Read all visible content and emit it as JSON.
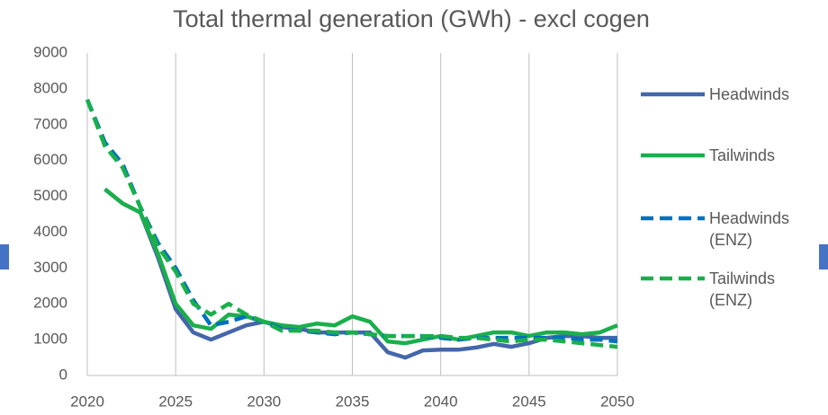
{
  "chart_data": {
    "type": "line",
    "title": "Total thermal generation (GWh) - excl cogen",
    "x": [
      2020,
      2021,
      2022,
      2023,
      2024,
      2025,
      2026,
      2027,
      2028,
      2029,
      2030,
      2031,
      2032,
      2033,
      2034,
      2035,
      2036,
      2037,
      2038,
      2039,
      2040,
      2041,
      2042,
      2043,
      2044,
      2045,
      2046,
      2047,
      2048,
      2049,
      2050
    ],
    "xlim": [
      2020,
      2050
    ],
    "xticks": [
      2020,
      2025,
      2030,
      2035,
      2040,
      2045,
      2050
    ],
    "ylim": [
      0,
      9000
    ],
    "yticks": [
      0,
      1000,
      2000,
      3000,
      4000,
      5000,
      6000,
      7000,
      8000,
      9000
    ],
    "xgrid": true,
    "legend": "right",
    "series": [
      {
        "name": "Headwinds",
        "color": "#4466aa",
        "style": "solid",
        "values": [
          null,
          5200,
          4800,
          4550,
          3300,
          1850,
          1200,
          1000,
          1200,
          1400,
          1500,
          1350,
          1300,
          1200,
          1200,
          1200,
          1200,
          650,
          500,
          700,
          720,
          720,
          780,
          880,
          800,
          900,
          1050,
          1100,
          1100,
          1050,
          1050
        ]
      },
      {
        "name": "Tailwinds",
        "color": "#1aaf4b",
        "style": "solid",
        "values": [
          null,
          5200,
          4800,
          4550,
          3400,
          2000,
          1400,
          1300,
          1700,
          1650,
          1500,
          1400,
          1350,
          1450,
          1400,
          1650,
          1500,
          950,
          900,
          1000,
          1100,
          1000,
          1100,
          1200,
          1200,
          1100,
          1200,
          1200,
          1150,
          1200,
          1400
        ]
      },
      {
        "name": "Headwinds (ENZ)",
        "color": "#0070c0",
        "style": "dashed",
        "values": [
          7700,
          6500,
          5900,
          4700,
          3700,
          3000,
          2100,
          1400,
          1500,
          1650,
          1500,
          1300,
          1250,
          1200,
          1150,
          1200,
          1150,
          1100,
          1100,
          1100,
          1050,
          1000,
          1050,
          1050,
          1050,
          1050,
          1050,
          1050,
          1000,
          1000,
          950
        ]
      },
      {
        "name": "Tailwinds (ENZ)",
        "color": "#1aaf4b",
        "style": "dashed",
        "values": [
          7700,
          6400,
          5800,
          4700,
          3600,
          2900,
          2000,
          1700,
          2000,
          1700,
          1500,
          1250,
          1250,
          1250,
          1200,
          1200,
          1150,
          1100,
          1100,
          1100,
          1100,
          1050,
          1050,
          1000,
          950,
          1000,
          1000,
          950,
          900,
          850,
          800
        ]
      }
    ]
  }
}
